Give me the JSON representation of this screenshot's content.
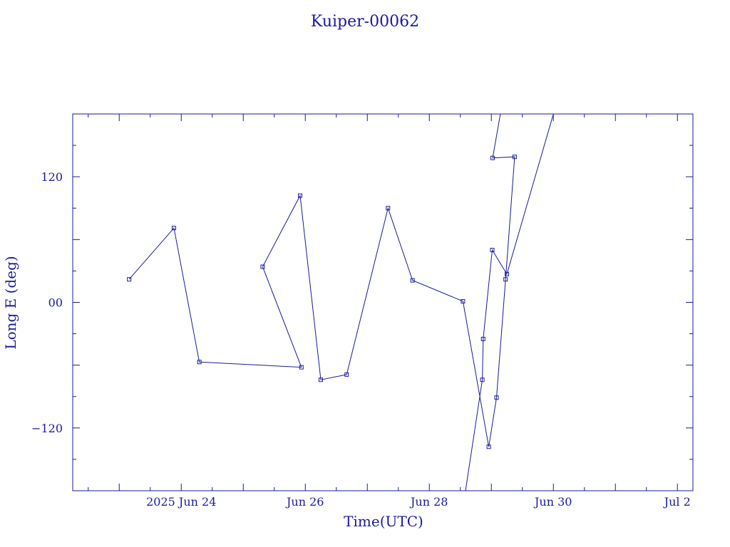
{
  "chart_data": {
    "type": "line",
    "title": "Kuiper-00062",
    "xlabel": "Time(UTC)",
    "ylabel": "Long E (deg)",
    "x_axis": {
      "type": "date",
      "range": [
        "2025-06-22 06:00",
        "2025-07-02 06:00"
      ],
      "tick_labels": [
        {
          "date": "2025-06-24",
          "label": "2025 Jun 24"
        },
        {
          "date": "2025-06-26",
          "label": "Jun 26"
        },
        {
          "date": "2025-06-28",
          "label": "Jun 28"
        },
        {
          "date": "2025-06-30",
          "label": "Jun 30"
        },
        {
          "date": "2025-07-02",
          "label": "Jul  2"
        }
      ],
      "minor_ticks_hours": 12,
      "major_ticks_hours": 24
    },
    "y_axis": {
      "range": [
        -180,
        180
      ],
      "tick_labels": [
        {
          "value": 120,
          "label": "120"
        },
        {
          "value": 0,
          "label": "00"
        },
        {
          "value": -120,
          "label": "-120"
        }
      ],
      "minor_step": 30
    },
    "grid": false,
    "color": "#1a1a9c",
    "series": [
      {
        "points": [
          {
            "t": "2025-06-23 03:50",
            "y": 22
          },
          {
            "t": "2025-06-23 21:10",
            "y": 71
          },
          {
            "t": "2025-06-24 07:00",
            "y": -57
          },
          {
            "t": "2025-06-25 22:30",
            "y": -62
          },
          {
            "t": "2025-06-25 07:30",
            "y": 34
          },
          {
            "t": "2025-06-25 22:00",
            "y": 102
          },
          {
            "t": "2025-06-26 06:00",
            "y": -74
          },
          {
            "t": "2025-06-26 16:00",
            "y": -69
          },
          {
            "t": "2025-06-27 08:00",
            "y": 90
          },
          {
            "t": "2025-06-27 17:30",
            "y": 21
          },
          {
            "t": "2025-06-28 13:00",
            "y": 1
          },
          {
            "t": "2025-06-28 23:00",
            "y": -138
          },
          {
            "t": "2025-06-29 02:00",
            "y": -91
          },
          {
            "t": "2025-06-29 05:30",
            "y": 22
          },
          {
            "t": "2025-06-29 09:00",
            "y": 139
          },
          {
            "t": "2025-06-29 00:30",
            "y": 138
          },
          {
            "t": "2025-06-29 03:30",
            "y": 180
          },
          {
            "t": "break"
          },
          {
            "t": "2025-06-28 14:00",
            "y": -180
          },
          {
            "t": "2025-06-28 20:30",
            "y": -74
          },
          {
            "t": "2025-06-28 20:50",
            "y": -35
          },
          {
            "t": "2025-06-29 00:20",
            "y": 50
          },
          {
            "t": "2025-06-29 06:00",
            "y": 27
          },
          {
            "t": "2025-06-30 00:00",
            "y": 180
          }
        ]
      }
    ]
  }
}
